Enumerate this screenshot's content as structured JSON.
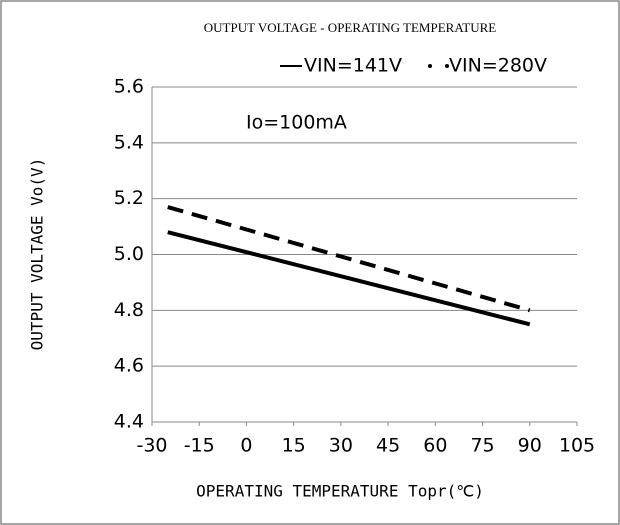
{
  "chart_data": {
    "type": "line",
    "title": "OUTPUT VOLTAGE - OPERATING TEMPERATURE",
    "annotation": "Io=100mA",
    "xlabel": "OPERATING TEMPERATURE Topr(℃)",
    "ylabel": "OUTPUT VOLTAGE Vo(V)",
    "xlim": [
      -30,
      105
    ],
    "xticks": [
      -30,
      -15,
      0,
      15,
      30,
      45,
      60,
      75,
      90,
      105
    ],
    "ylim": [
      4.4,
      5.6
    ],
    "yticks": [
      4.4,
      4.6,
      4.8,
      {
        "value": 5,
        "label": "5.0"
      },
      5.2,
      5.4,
      5.6
    ],
    "grid": true,
    "legend": "top-right",
    "series": [
      {
        "name": "VIN=141V",
        "color": "#000000",
        "dashed": false,
        "x": [
          -25,
          90
        ],
        "values": [
          5.08,
          4.75
        ]
      },
      {
        "name": "VIN=280V",
        "color": "#000000",
        "dashed": true,
        "x": [
          -25,
          90
        ],
        "values": [
          5.17,
          4.8
        ]
      }
    ]
  }
}
